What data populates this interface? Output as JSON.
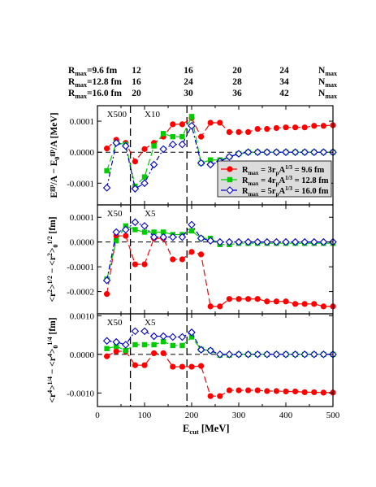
{
  "header": {
    "rows": [
      {
        "label": "R",
        "sub": "max",
        "value": "=9.6 fm",
        "cols": [
          "12",
          "16",
          "20",
          "24"
        ],
        "end": "N",
        "end_sub": "max"
      },
      {
        "label": "R",
        "sub": "max",
        "value": "=12.8 fm",
        "cols": [
          "16",
          "24",
          "28",
          "34"
        ],
        "end": "N",
        "end_sub": "max"
      },
      {
        "label": "R",
        "sub": "max",
        "value": "=16.0 fm",
        "cols": [
          "20",
          "30",
          "36",
          "42"
        ],
        "end": "N",
        "end_sub": "max"
      }
    ]
  },
  "chart_data": {
    "type": "line",
    "xlabel": "E_cut [MeV]",
    "xlim": [
      0,
      500
    ],
    "x_ticks": [
      "0",
      "100",
      "200",
      "300",
      "400",
      "500"
    ],
    "vlines": [
      70,
      190
    ],
    "colors": {
      "s1": "#ff0000",
      "s2": "#00cc00",
      "s3": "#0000cc"
    },
    "legend": {
      "placement": "inside lower right of top panel",
      "entries": [
        {
          "text": "R_max = 3r_pA^{1/3} = 9.6 fm"
        },
        {
          "text": "R_max = 4r_pA^{1/3} = 12.8 fm"
        },
        {
          "text": "R_max = 5r_pA^{1/3} = 16.0 fm"
        }
      ]
    },
    "panels": [
      {
        "ylabel": "E^gp/A − E_0^gp/A [MeV]",
        "ylim": [
          -0.00017,
          0.00015
        ],
        "y_ticks": [
          "-0.0001",
          "0.0000",
          "0.0001"
        ],
        "scale_labels": [
          "X500",
          "X10"
        ],
        "series": [
          {
            "x": [
              20,
              40,
              60,
              80,
              100,
              120,
              140,
              160,
              180,
              200,
              220,
              240,
              260,
              280,
              300,
              320,
              340,
              360,
              380,
              400,
              420,
              440,
              460,
              480,
              500
            ],
            "y": [
              1.2e-05,
              4e-05,
              3e-05,
              -3e-05,
              1e-05,
              3e-05,
              5e-05,
              9e-05,
              9e-05,
              0.00011,
              5e-05,
              9.5e-05,
              9.5e-05,
              6.5e-05,
              6.5e-05,
              6.5e-05,
              7.5e-05,
              7.5e-05,
              7.8e-05,
              8e-05,
              8e-05,
              8e-05,
              8.5e-05,
              8.5e-05,
              8.7e-05
            ]
          },
          {
            "x": [
              20,
              40,
              60,
              80,
              100,
              120,
              140,
              160,
              180,
              200,
              220,
              240,
              260,
              280,
              300,
              320,
              340,
              360,
              380,
              400,
              420,
              440,
              460,
              480,
              500
            ],
            "y": [
              -6e-05,
              3e-05,
              2.5e-05,
              -0.00011,
              -8e-05,
              2e-05,
              6e-05,
              5e-05,
              5e-05,
              0.000115,
              -3.5e-05,
              -2.5e-05,
              -2.5e-05,
              -1.5e-05,
              -5e-06,
              0.0,
              0.0,
              0.0,
              0.0,
              0.0,
              0.0,
              0.0,
              0.0,
              0.0,
              0.0
            ]
          },
          {
            "x": [
              20,
              40,
              60,
              80,
              100,
              120,
              140,
              160,
              180,
              200,
              220,
              240,
              260,
              280,
              300,
              320,
              340,
              360,
              380,
              400,
              420,
              440,
              460,
              480,
              500
            ],
            "y": [
              -0.000115,
              3e-05,
              2e-05,
              -0.000118,
              -0.0001,
              -4e-05,
              1e-05,
              2.5e-05,
              2.5e-05,
              8.5e-05,
              -3.5e-05,
              -4e-05,
              -3e-05,
              -1.5e-05,
              -5e-06,
              0.0,
              0.0,
              0.0,
              0.0,
              0.0,
              0.0,
              0.0,
              0.0,
              0.0,
              0.0
            ]
          }
        ]
      },
      {
        "ylabel": "<r^2>^{1/2} − <r^2>_0^{1/2} [fm]",
        "ylim": [
          -0.00029,
          0.00015
        ],
        "y_ticks": [
          "-0.0002",
          "-0.0001",
          "0.0000",
          "0.0001"
        ],
        "scale_labels": [
          "X50",
          "X5"
        ],
        "series": [
          {
            "x": [
              20,
              40,
              60,
              80,
              100,
              120,
              140,
              160,
              180,
              200,
              220,
              240,
              260,
              280,
              300,
              320,
              340,
              360,
              380,
              400,
              420,
              440,
              460,
              480,
              500
            ],
            "y": [
              -0.00021,
              2.5e-05,
              2.5e-05,
              -9e-05,
              -9e-05,
              1.5e-05,
              1.5e-05,
              -7e-05,
              -7e-05,
              -4e-05,
              -5e-05,
              -0.00026,
              -0.00026,
              -0.00023,
              -0.00023,
              -0.00023,
              -0.00023,
              -0.00024,
              -0.00024,
              -0.00024,
              -0.00025,
              -0.00025,
              -0.00025,
              -0.00026,
              -0.00026
            ]
          },
          {
            "x": [
              20,
              40,
              60,
              80,
              100,
              120,
              140,
              160,
              180,
              200,
              220,
              240,
              260,
              280,
              300,
              320,
              340,
              360,
              380,
              400,
              420,
              440,
              460,
              480,
              500
            ],
            "y": [
              -0.00015,
              5e-06,
              6.5e-05,
              5e-05,
              4e-05,
              4e-05,
              4e-05,
              3e-05,
              3e-05,
              4.5e-05,
              1.5e-05,
              1.5e-05,
              -1e-05,
              -1e-05,
              -5e-06,
              -5e-06,
              -5e-06,
              -5e-06,
              -5e-06,
              -5e-06,
              -5e-06,
              -5e-06,
              -5e-06,
              -5e-06,
              -5e-06
            ]
          },
          {
            "x": [
              20,
              40,
              60,
              80,
              100,
              120,
              140,
              160,
              180,
              200,
              220,
              240,
              260,
              280,
              300,
              320,
              340,
              360,
              380,
              400,
              420,
              440,
              460,
              480,
              500
            ],
            "y": [
              -0.000155,
              4e-05,
              5e-05,
              8e-05,
              6.5e-05,
              2e-05,
              2e-05,
              2e-05,
              2e-05,
              7e-05,
              1.5e-05,
              5e-06,
              0.0,
              0.0,
              0.0,
              0.0,
              0.0,
              0.0,
              0.0,
              0.0,
              0.0,
              0.0,
              0.0,
              0.0,
              0.0
            ]
          }
        ]
      },
      {
        "ylabel": "<r^4>^{1/4} − <r^4>_0^{1/4} [fm]",
        "ylim": [
          -0.00135,
          0.00105
        ],
        "y_ticks": [
          "-0.0010",
          "0.0000",
          "0.0010"
        ],
        "scale_labels": [
          "X50",
          "X5"
        ],
        "series": [
          {
            "x": [
              20,
              40,
              60,
              80,
              100,
              120,
              140,
              160,
              180,
              200,
              220,
              240,
              260,
              280,
              300,
              320,
              340,
              360,
              380,
              400,
              420,
              440,
              460,
              480,
              500
            ],
            "y": [
              -5e-05,
              8e-05,
              8e-05,
              -0.00028,
              -0.00028,
              3e-05,
              3e-05,
              -0.00032,
              -0.00032,
              -0.00032,
              -0.0003,
              -0.00108,
              -0.00108,
              -0.00093,
              -0.00093,
              -0.00093,
              -0.00093,
              -0.00095,
              -0.00095,
              -0.00096,
              -0.00096,
              -0.00098,
              -0.00098,
              -0.00099,
              -0.00099
            ]
          },
          {
            "x": [
              20,
              40,
              60,
              80,
              100,
              120,
              140,
              160,
              180,
              200,
              220,
              240,
              260,
              280,
              300,
              320,
              340,
              360,
              380,
              400,
              420,
              440,
              460,
              480,
              500
            ],
            "y": [
              0.00015,
              0.00021,
              0.0001,
              0.00025,
              0.00025,
              0.00025,
              0.00033,
              0.00023,
              0.00023,
              0.00045,
              0.00013,
              0.0001,
              -2e-05,
              -2e-05,
              0.0,
              0.0,
              0.0,
              0.0,
              0.0,
              0.0,
              0.0,
              0.0,
              0.0,
              0.0,
              0.0
            ]
          },
          {
            "x": [
              20,
              40,
              60,
              80,
              100,
              120,
              140,
              160,
              180,
              200,
              220,
              240,
              260,
              280,
              300,
              320,
              340,
              360,
              380,
              400,
              420,
              440,
              460,
              480,
              500
            ],
            "y": [
              0.00035,
              0.00032,
              0.00025,
              0.0006,
              0.0006,
              0.00047,
              0.00047,
              0.00045,
              0.00045,
              0.00057,
              0.00012,
              0.0001,
              0.0,
              0.0,
              0.0,
              0.0,
              0.0,
              0.0,
              0.0,
              0.0,
              0.0,
              0.0,
              0.0,
              0.0,
              0.0
            ]
          }
        ]
      }
    ]
  }
}
